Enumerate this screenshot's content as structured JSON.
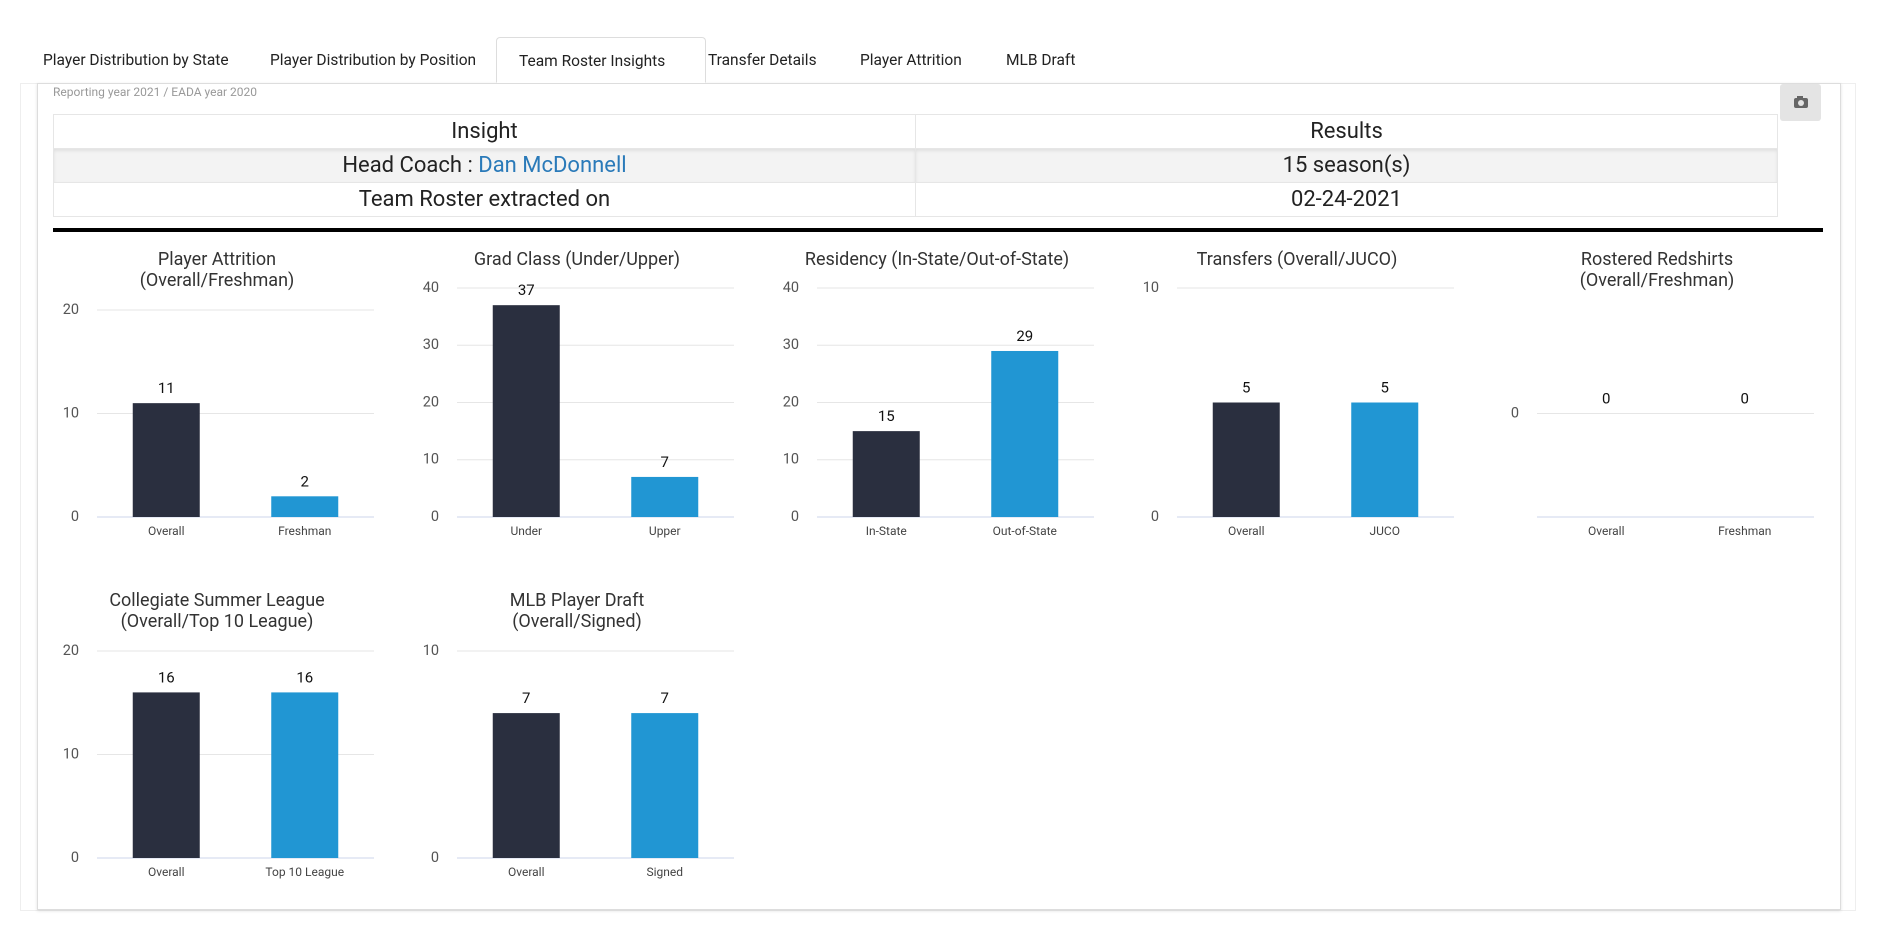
{
  "tabs": [
    "Player Distribution by State",
    "Player Distribution by Position",
    "Team Roster Insights",
    "Transfer Details",
    "Player Attrition",
    "MLB Draft"
  ],
  "note": "Reporting year 2021 / EADA year 2020",
  "table": {
    "headers": [
      "Insight",
      "Results"
    ],
    "rows": [
      [
        {
          "label": "Head Coach :",
          "link": "Dan McDonnell"
        },
        "15 season(s)"
      ],
      [
        "Team Roster extracted on",
        "02-24-2021"
      ]
    ]
  },
  "chart_data": [
    {
      "type": "bar",
      "title": [
        "Player Attrition",
        "(Overall/Freshman)"
      ],
      "categories": [
        "Overall",
        "Freshman"
      ],
      "values": [
        11,
        2
      ],
      "colors": [
        "#2a2f3f",
        "#2196d3"
      ],
      "ylim": [
        0,
        20
      ],
      "yticks": [
        0,
        10,
        20
      ],
      "grid": true
    },
    {
      "type": "bar",
      "title": [
        "Grad Class (Under/Upper)"
      ],
      "categories": [
        "Under",
        "Upper"
      ],
      "values": [
        37,
        7
      ],
      "colors": [
        "#2a2f3f",
        "#2196d3"
      ],
      "ylim": [
        0,
        40
      ],
      "yticks": [
        0,
        10,
        20,
        30,
        40
      ],
      "grid": true
    },
    {
      "type": "bar",
      "title": [
        "Residency (In-State/Out-of-State)"
      ],
      "categories": [
        "In-State",
        "Out-of-State"
      ],
      "values": [
        15,
        29
      ],
      "colors": [
        "#2a2f3f",
        "#2196d3"
      ],
      "ylim": [
        0,
        40
      ],
      "yticks": [
        0,
        10,
        20,
        30,
        40
      ],
      "grid": true
    },
    {
      "type": "bar",
      "title": [
        "Transfers (Overall/JUCO)"
      ],
      "categories": [
        "Overall",
        "JUCO"
      ],
      "values": [
        5,
        5
      ],
      "colors": [
        "#2a2f3f",
        "#2196d3"
      ],
      "ylim": [
        0,
        10
      ],
      "yticks": [
        0,
        10
      ],
      "grid": true
    },
    {
      "type": "bar",
      "title": [
        "Rostered Redshirts",
        "(Overall/Freshman)"
      ],
      "categories": [
        "Overall",
        "Freshman"
      ],
      "values": [
        0,
        0
      ],
      "colors": [
        "#2a2f3f",
        "#2196d3"
      ],
      "ylim": [
        -1,
        1
      ],
      "yticks": [
        0
      ],
      "grid": true
    },
    {
      "type": "bar",
      "title": [
        "Collegiate Summer League",
        "(Overall/Top 10 League)"
      ],
      "categories": [
        "Overall",
        "Top 10 League"
      ],
      "values": [
        16,
        16
      ],
      "colors": [
        "#2a2f3f",
        "#2196d3"
      ],
      "ylim": [
        0,
        20
      ],
      "yticks": [
        0,
        10,
        20
      ],
      "grid": true
    },
    {
      "type": "bar",
      "title": [
        "MLB Player Draft",
        "(Overall/Signed)"
      ],
      "categories": [
        "Overall",
        "Signed"
      ],
      "values": [
        7,
        7
      ],
      "colors": [
        "#2a2f3f",
        "#2196d3"
      ],
      "ylim": [
        0,
        10
      ],
      "yticks": [
        0,
        10
      ],
      "grid": true
    }
  ]
}
